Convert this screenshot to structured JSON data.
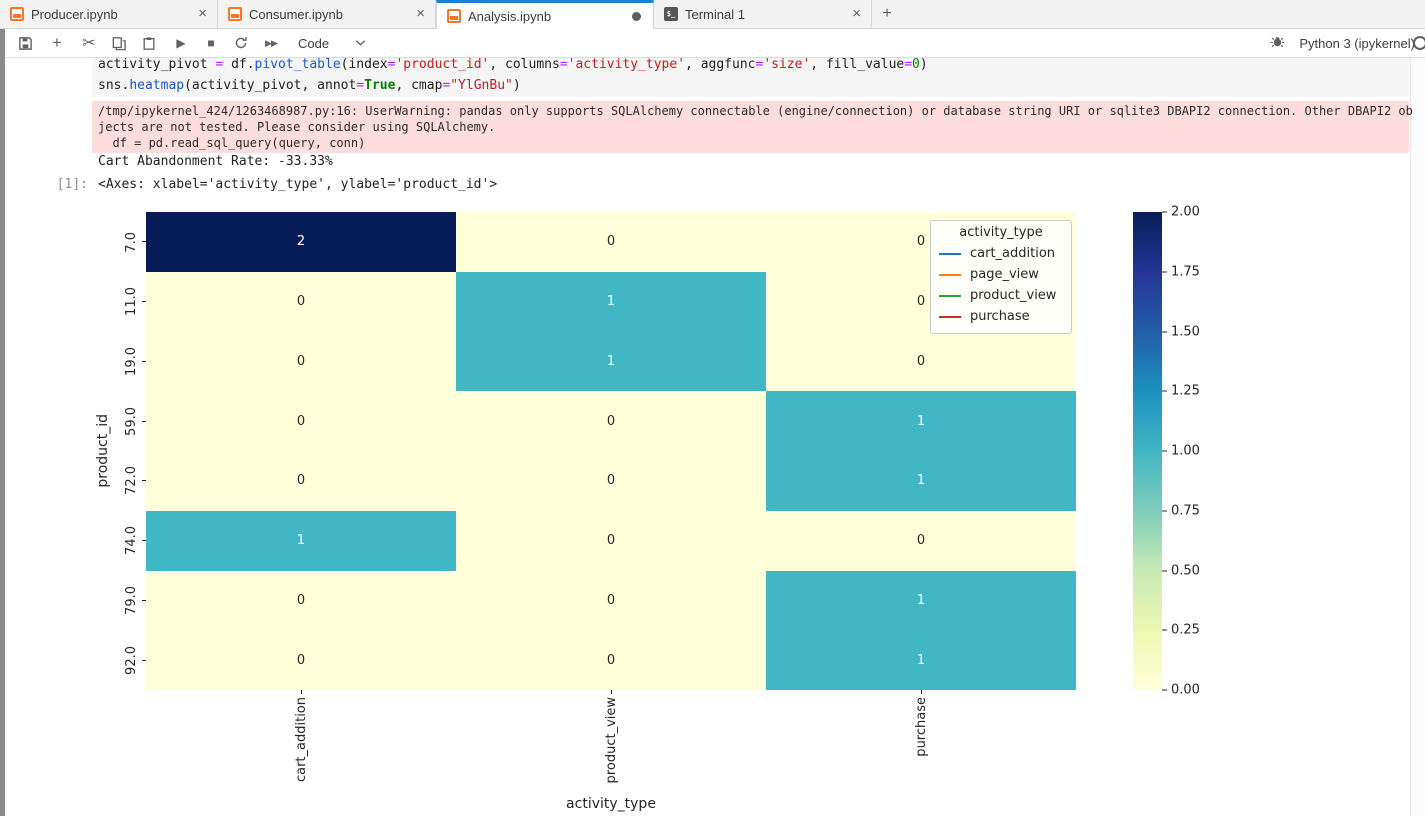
{
  "tabs": [
    {
      "label": "Producer.ipynb",
      "icon": "notebook",
      "right": "close",
      "active": false
    },
    {
      "label": "Consumer.ipynb",
      "icon": "notebook",
      "right": "close",
      "active": false
    },
    {
      "label": "Analysis.ipynb",
      "icon": "notebook",
      "right": "dirty",
      "active": true
    },
    {
      "label": "Terminal 1",
      "icon": "terminal",
      "right": "close",
      "active": false
    }
  ],
  "tabbar": {
    "new_tab_glyph": "+",
    "close_glyph": "×",
    "terminal_glyph": "$_"
  },
  "toolbar": {
    "cell_type": "Code",
    "kernel_name": "Python 3 (ipykernel)"
  },
  "code_cell": {
    "lines": [
      [
        [
          "activity_pivot ",
          "d"
        ],
        [
          "= ",
          "o"
        ],
        [
          "df.",
          "d"
        ],
        [
          "pivot_table",
          "f"
        ],
        [
          "(index",
          "d"
        ],
        [
          "=",
          "o"
        ],
        [
          "'product_id'",
          "s"
        ],
        [
          ", columns",
          "d"
        ],
        [
          "=",
          "o"
        ],
        [
          "'activity_type'",
          "s"
        ],
        [
          ", aggfunc",
          "d"
        ],
        [
          "=",
          "o"
        ],
        [
          "'size'",
          "s"
        ],
        [
          ", fill_value",
          "d"
        ],
        [
          "=",
          "o"
        ],
        [
          "0",
          "n"
        ],
        [
          ")",
          "d"
        ]
      ],
      [
        [
          "sns.",
          "d"
        ],
        [
          "heatmap",
          "f"
        ],
        [
          "(activity_pivot, annot",
          "d"
        ],
        [
          "=",
          "o"
        ],
        [
          "True",
          "k"
        ],
        [
          ", cmap",
          "d"
        ],
        [
          "=",
          "o"
        ],
        [
          "\"YlGnBu\"",
          "s"
        ],
        [
          ")",
          "d"
        ]
      ]
    ]
  },
  "outputs": {
    "stderr_lines": [
      "/tmp/ipykernel_424/1263468987.py:16: UserWarning: pandas only supports SQLAlchemy connectable (engine/connection) or database string URI or sqlite3 DBAPI2 connection. Other DBAPI2 ob",
      "jects are not tested. Please consider using SQLAlchemy.",
      "  df = pd.read_sql_query(query, conn)"
    ],
    "stdout": "Cart Abandonment Rate: -33.33%",
    "prompt": "[1]:",
    "result": "<Axes: xlabel='activity_type', ylabel='product_id'>"
  },
  "chart_data": {
    "type": "heatmap",
    "xlabel": "activity_type",
    "ylabel": "product_id",
    "x_categories": [
      "cart_addition",
      "product_view",
      "purchase"
    ],
    "y_categories": [
      "7.0",
      "11.0",
      "19.0",
      "59.0",
      "72.0",
      "74.0",
      "79.0",
      "92.0"
    ],
    "matrix": [
      [
        2,
        0,
        0
      ],
      [
        0,
        1,
        0
      ],
      [
        0,
        1,
        0
      ],
      [
        0,
        0,
        1
      ],
      [
        0,
        0,
        1
      ],
      [
        1,
        0,
        0
      ],
      [
        0,
        0,
        1
      ],
      [
        0,
        0,
        1
      ]
    ],
    "cmap": "YlGnBu",
    "value_colors": {
      "0": "#ffffd9",
      "1": "#41b6c4",
      "2": "#081d58"
    },
    "annot_text_colors": {
      "0": "#262626",
      "1": "#ffffff",
      "2": "#ffffff"
    },
    "colorbar": {
      "min": 0,
      "max": 2,
      "ticks": [
        "2.00",
        "1.75",
        "1.50",
        "1.25",
        "1.00",
        "0.75",
        "0.50",
        "0.25",
        "0.00"
      ],
      "gradient_top_to_bottom": [
        "#081d58",
        "#253494",
        "#225ea8",
        "#1d91c0",
        "#41b6c4",
        "#7fcdbb",
        "#c7e9b4",
        "#edf8b1",
        "#ffffd9"
      ]
    },
    "legend": {
      "title": "activity_type",
      "entries": [
        {
          "label": "cart_addition",
          "color": "#1f77b4"
        },
        {
          "label": "page_view",
          "color": "#ff7f0e"
        },
        {
          "label": "product_view",
          "color": "#2ca02c"
        },
        {
          "label": "purchase",
          "color": "#d62728"
        }
      ]
    }
  },
  "colors": {
    "accent": "#2080d0",
    "stderr_bg": "#ffdddd",
    "jupyter_orange": "#f37726"
  }
}
